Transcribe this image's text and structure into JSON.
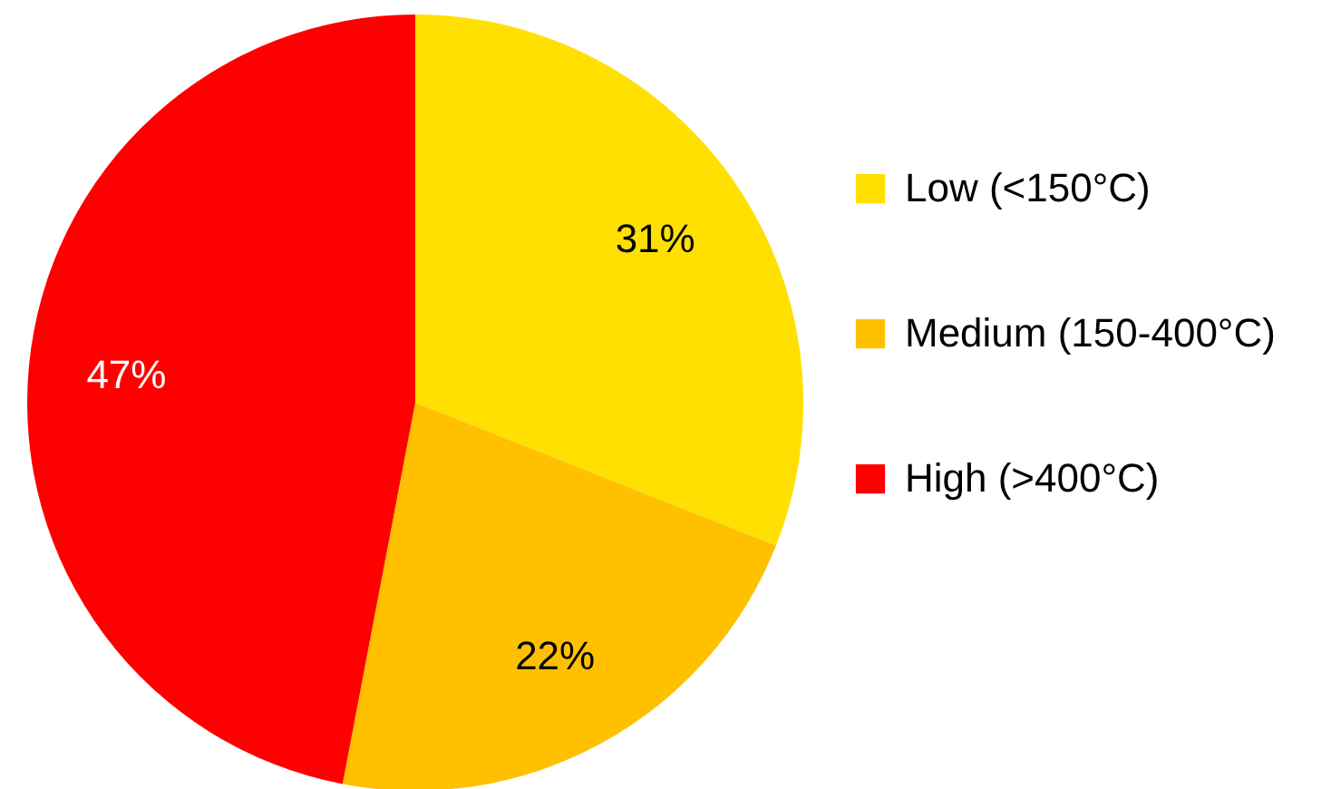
{
  "chart_data": {
    "type": "pie",
    "categories": [
      "Low (<150°C)",
      "Medium (150-400°C)",
      "High (>400°C)"
    ],
    "values": [
      31,
      22,
      47
    ],
    "colors": [
      "#ffe000",
      "#ffc000",
      "#ff0000"
    ],
    "value_labels": [
      "31%",
      "22%",
      "47%"
    ],
    "legend": "right"
  }
}
